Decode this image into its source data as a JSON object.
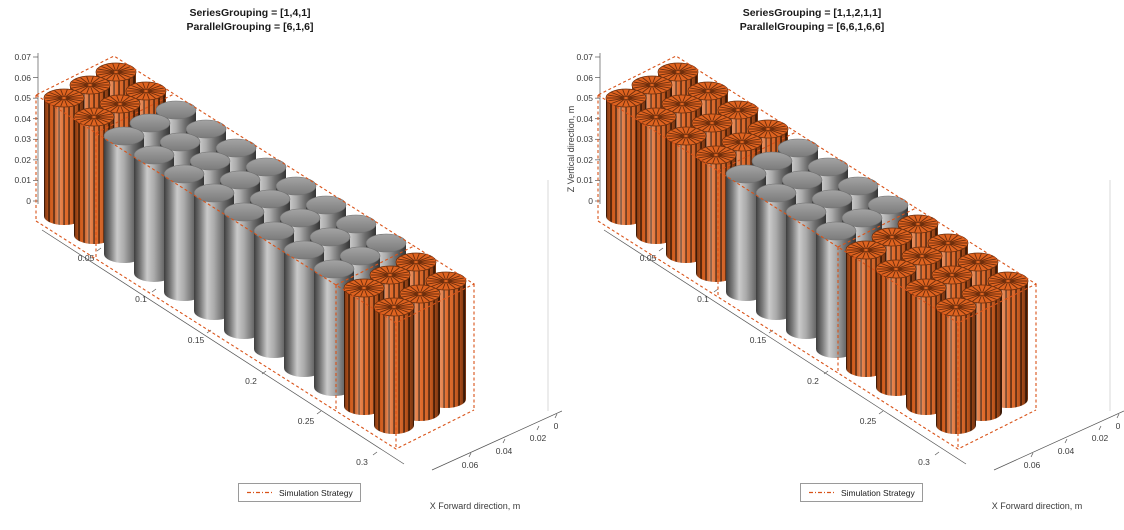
{
  "figure": {
    "background": "#FFFFFF",
    "legend_label": "Simulation Strategy",
    "x_axis_label": "X Forward direction, m",
    "z_axis_label": "Z Vertical direction, m",
    "colors": {
      "strategy_orange": "#D95319",
      "cell_orange": "#DE6320",
      "cell_orange_dark": "#6B2E0D",
      "cell_top_spoke": "#5A2509",
      "cell_gray": "#8F8F8F",
      "axis_line": "#555555",
      "tick_text": "#3C3C3C",
      "title_text": "#1A1A1A"
    }
  },
  "chart_data": [
    {
      "type": "3d-cylinder-grid",
      "title_lines": [
        "SeriesGrouping = [1,4,1]",
        "ParallelGrouping = [6,1,6]"
      ],
      "series_grouping": [
        1,
        4,
        1
      ],
      "parallel_grouping": [
        6,
        1,
        6
      ],
      "grid": {
        "columns": 12,
        "rows": 3
      },
      "column_groups": [
        {
          "columns": 2,
          "style": "strategy"
        },
        {
          "columns": 8,
          "style": "lumped"
        },
        {
          "columns": 2,
          "style": "strategy"
        }
      ],
      "axes": {
        "z": {
          "ticks": [
            "0",
            "0.01",
            "0.02",
            "0.03",
            "0.04",
            "0.05",
            "0.06",
            "0.07"
          ],
          "label_visible": false
        },
        "x": {
          "ticks": [
            "0.05",
            "0.1",
            "0.15",
            "0.2",
            "0.25",
            "0.3"
          ]
        },
        "y": {
          "ticks": [
            "0.06",
            "0.04",
            "0.02",
            "0"
          ]
        }
      },
      "legend": {
        "label": "Simulation Strategy",
        "position": "south"
      }
    },
    {
      "type": "3d-cylinder-grid",
      "title_lines": [
        "SeriesGrouping = [1,1,2,1,1]",
        "ParallelGrouping = [6,6,1,6,6]"
      ],
      "series_grouping": [
        1,
        1,
        2,
        1,
        1
      ],
      "parallel_grouping": [
        6,
        6,
        1,
        6,
        6
      ],
      "grid": {
        "columns": 12,
        "rows": 3
      },
      "column_groups": [
        {
          "columns": 4,
          "style": "strategy"
        },
        {
          "columns": 4,
          "style": "lumped"
        },
        {
          "columns": 4,
          "style": "strategy"
        }
      ],
      "axes": {
        "z": {
          "ticks": [
            "0",
            "0.01",
            "0.02",
            "0.03",
            "0.04",
            "0.05",
            "0.06",
            "0.07"
          ],
          "label_visible": true
        },
        "x": {
          "ticks": [
            "0.05",
            "0.1",
            "0.15",
            "0.2",
            "0.25",
            "0.3"
          ]
        },
        "y": {
          "ticks": [
            "0.06",
            "0.04",
            "0.02",
            "0"
          ]
        }
      },
      "legend": {
        "label": "Simulation Strategy",
        "position": "south"
      }
    }
  ]
}
